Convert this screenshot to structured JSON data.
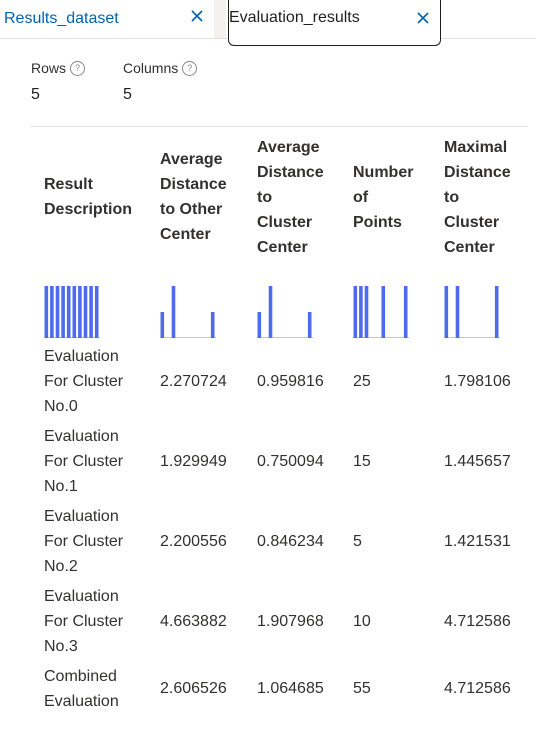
{
  "tabs": [
    {
      "label": "Results_dataset"
    },
    {
      "label": "Evaluation_results"
    }
  ],
  "stats": {
    "rows_label": "Rows",
    "rows_value": "5",
    "columns_label": "Columns",
    "columns_value": "5"
  },
  "headers": [
    "Result Description",
    "Average Distance to Other Center",
    "Average Distance to Cluster Center",
    "Number of Points",
    "Maximal Distance to Cluster Center"
  ],
  "histograms": [
    [
      1,
      1,
      1,
      1,
      1,
      1,
      1,
      1,
      1,
      1
    ],
    [
      1,
      0,
      2,
      0,
      0,
      0,
      0,
      0,
      0,
      1
    ],
    [
      1,
      0,
      2,
      0,
      0,
      0,
      0,
      0,
      0,
      1
    ],
    [
      1,
      1,
      1,
      0,
      0,
      1,
      0,
      0,
      0,
      1
    ],
    [
      1,
      0,
      1,
      0,
      0,
      0,
      0,
      0,
      0,
      1
    ]
  ],
  "rows": [
    {
      "desc": [
        "Evaluation",
        "For Cluster",
        "No.0"
      ],
      "avg_other": "2.270724",
      "avg_cluster": "0.959816",
      "points": "25",
      "max_dist": "1.798106"
    },
    {
      "desc": [
        "Evaluation",
        "For Cluster",
        "No.1"
      ],
      "avg_other": "1.929949",
      "avg_cluster": "0.750094",
      "points": "15",
      "max_dist": "1.445657"
    },
    {
      "desc": [
        "Evaluation",
        "For Cluster",
        "No.2"
      ],
      "avg_other": "2.200556",
      "avg_cluster": "0.846234",
      "points": "5",
      "max_dist": "1.421531"
    },
    {
      "desc": [
        "Evaluation",
        "For Cluster",
        "No.3"
      ],
      "avg_other": "4.663882",
      "avg_cluster": "1.907968",
      "points": "10",
      "max_dist": "4.712586"
    },
    {
      "desc": [
        "Combined",
        "Evaluation"
      ],
      "avg_other": "2.606526",
      "avg_cluster": "1.064685",
      "points": "55",
      "max_dist": "4.712586"
    }
  ],
  "colors": {
    "accent": "#0063b1",
    "bar": "#4f6bed"
  }
}
